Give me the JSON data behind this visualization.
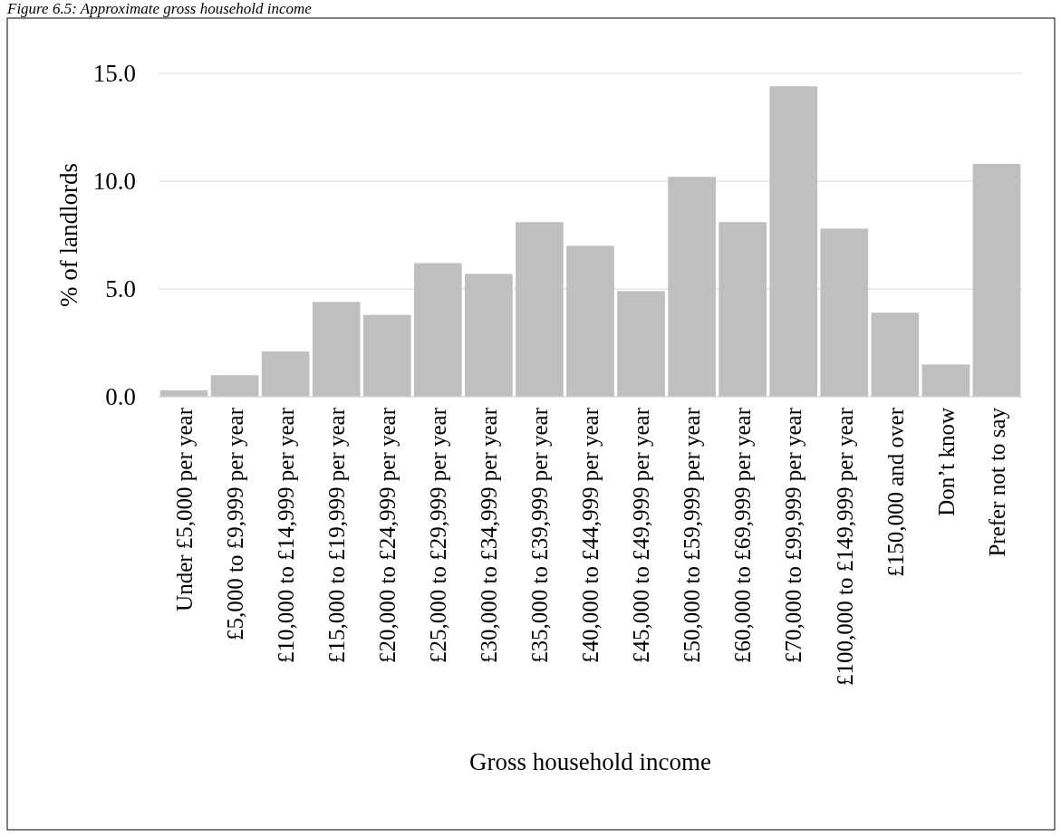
{
  "chart_data": {
    "type": "bar",
    "title": "Figure 6.5: Approximate gross household income",
    "xlabel": "Gross household income",
    "ylabel": "% of landlords",
    "categories": [
      "Under £5,000 per year",
      "£5,000 to £9,999 per year",
      "£10,000 to £14,999 per year",
      "£15,000 to £19,999 per year",
      "£20,000 to £24,999 per year",
      "£25,000 to £29,999 per year",
      "£30,000 to £34,999 per year",
      "£35,000 to £39,999 per year",
      "£40,000 to £44,999 per year",
      "£45,000 to £49,999 per year",
      "£50,000 to £59,999 per year",
      "£60,000 to £69,999 per year",
      "£70,000 to £99,999 per year",
      "£100,000 to £149,999 per year",
      "£150,000 and over",
      "Don’t know",
      "Prefer not to say"
    ],
    "values": [
      0.3,
      1.0,
      2.1,
      4.4,
      3.8,
      6.2,
      5.7,
      8.1,
      7.0,
      4.9,
      10.2,
      8.1,
      14.4,
      7.8,
      3.9,
      1.5,
      10.8
    ],
    "color": "#bfbfbf",
    "ylim": [
      0,
      15
    ],
    "yticks": [
      {
        "value": 0,
        "label": "0.0"
      },
      {
        "value": 5,
        "label": "5.0"
      },
      {
        "value": 10,
        "label": "10.0"
      },
      {
        "value": 15,
        "label": "15.0"
      }
    ],
    "grid": "y"
  }
}
